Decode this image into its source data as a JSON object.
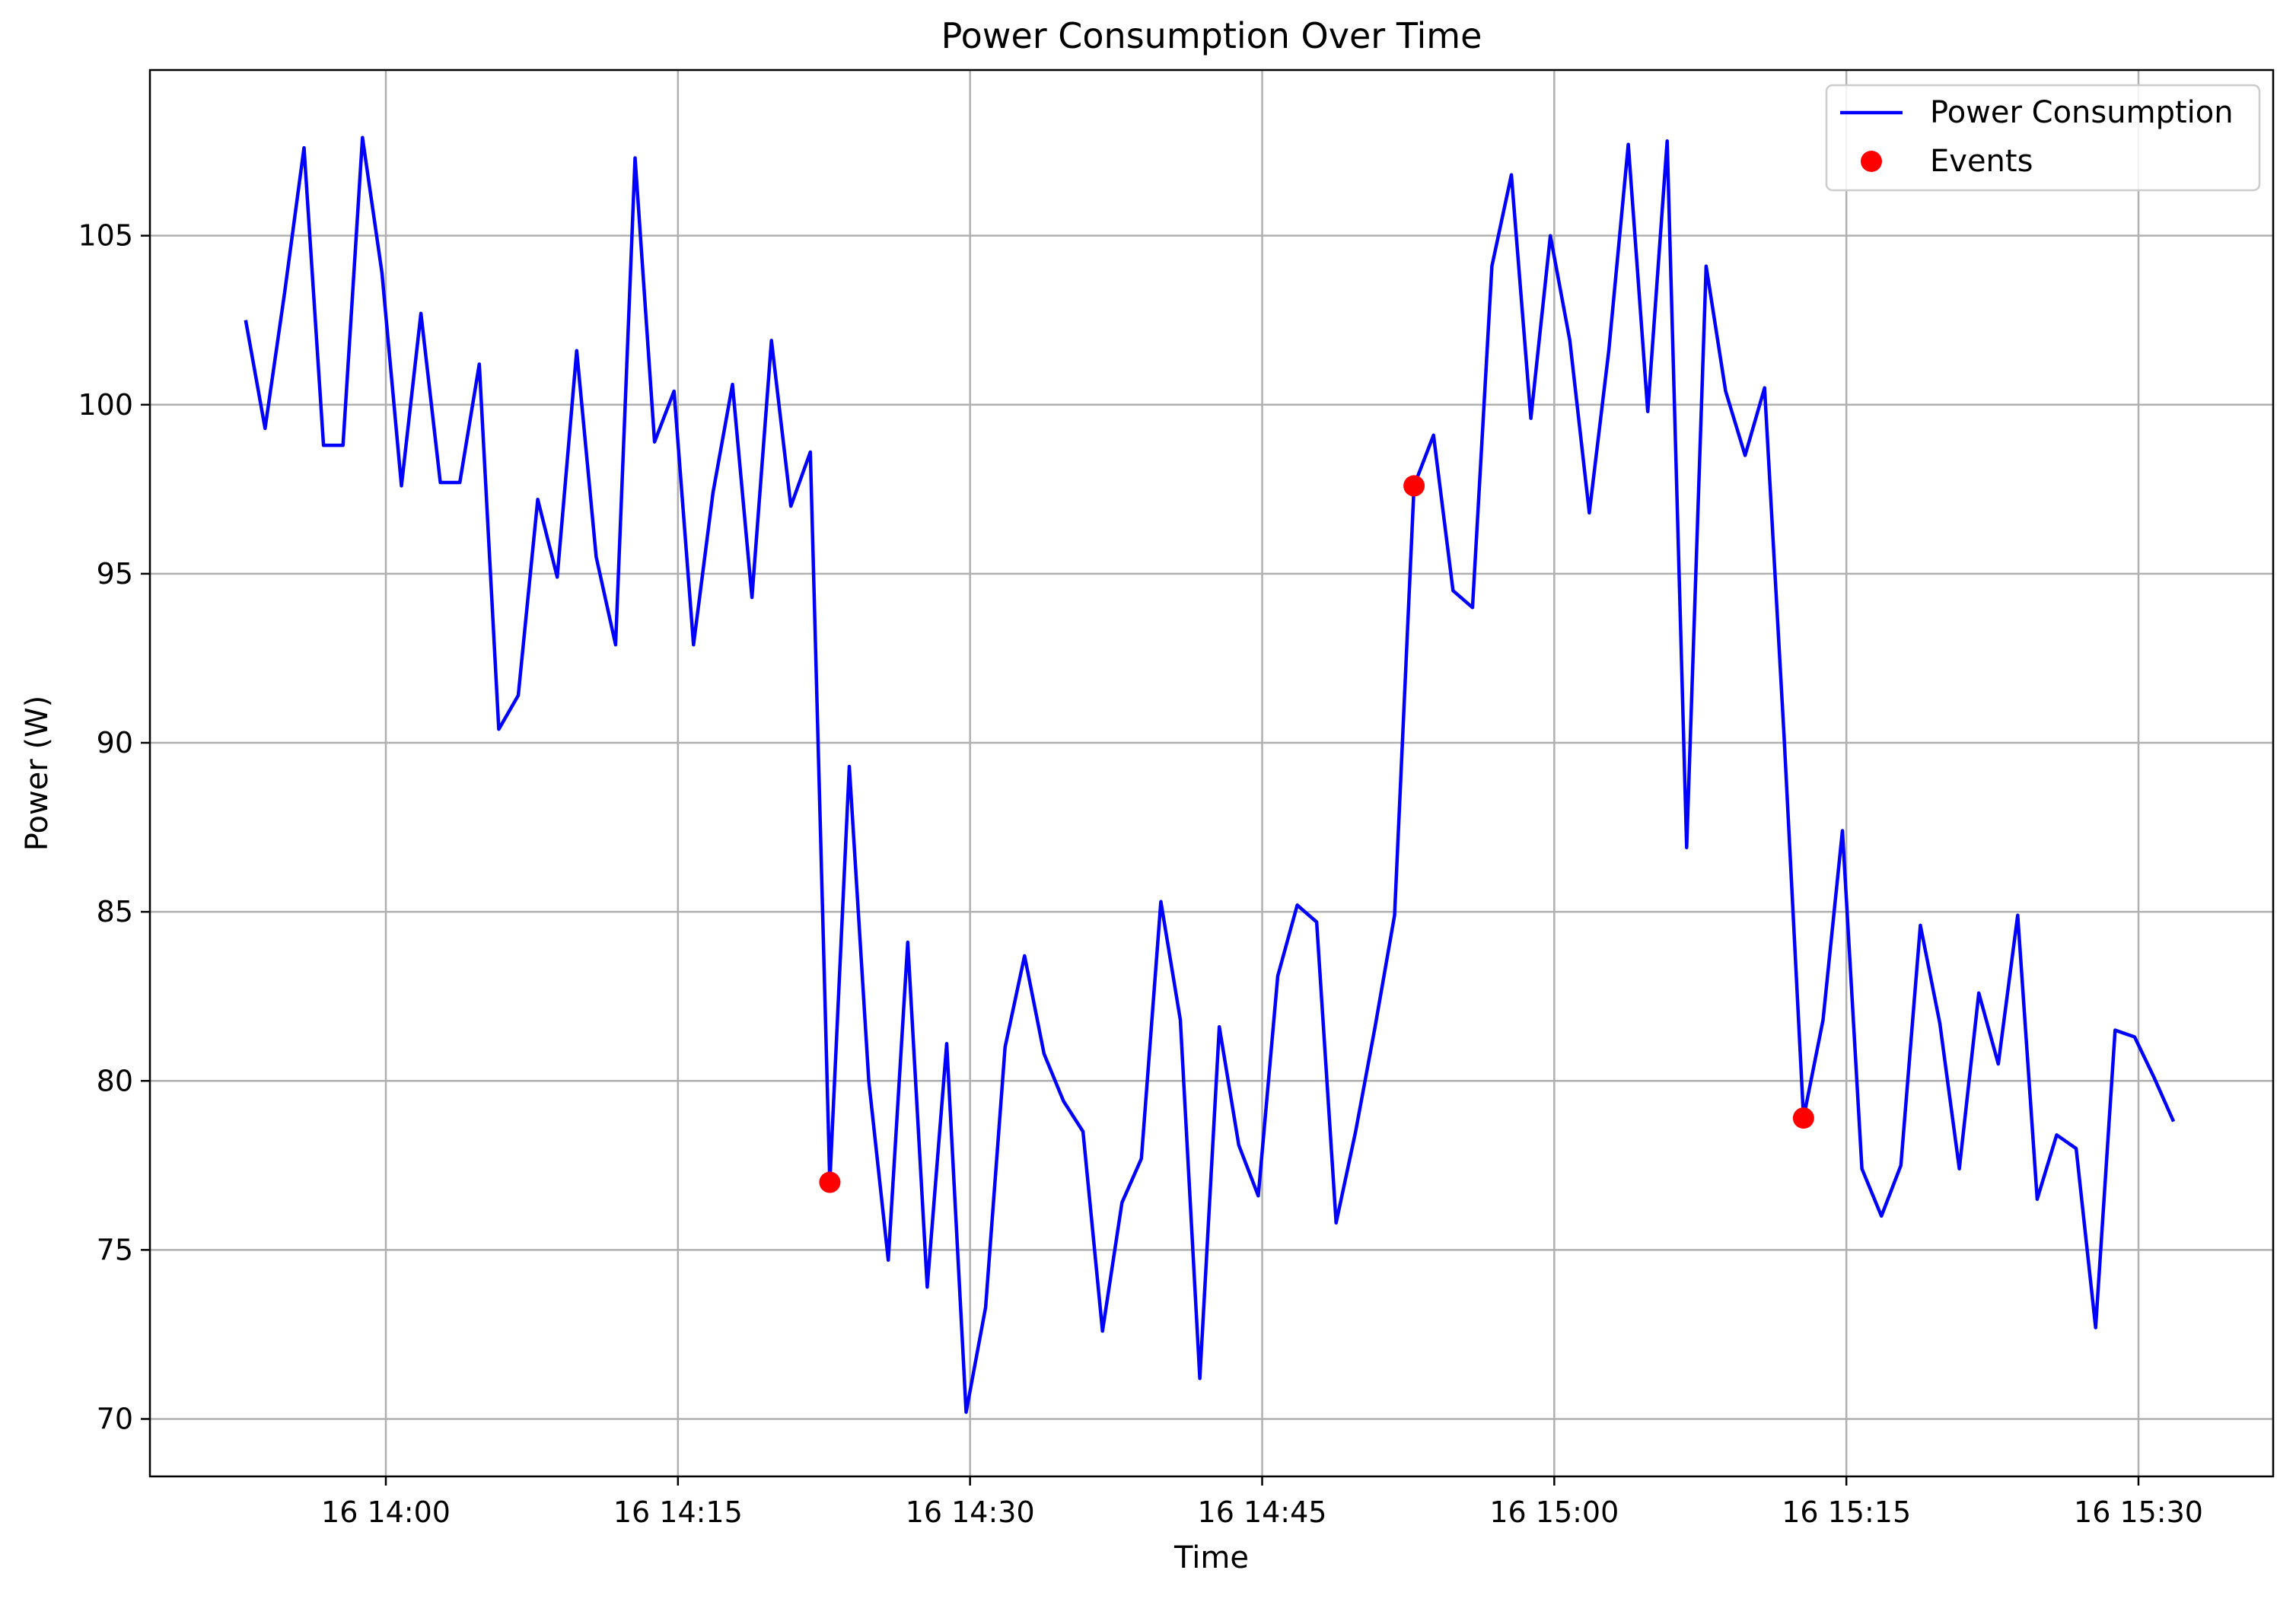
{
  "chart_data": {
    "type": "line",
    "title": "Power Consumption Over Time",
    "xlabel": "Time",
    "ylabel": "Power (W)",
    "x_tick_labels": [
      "16 14:00",
      "16 14:15",
      "16 14:30",
      "16 14:45",
      "16 15:00",
      "16 15:15",
      "16 15:30"
    ],
    "x_tick_minutes": [
      0,
      15,
      30,
      45,
      60,
      75,
      90
    ],
    "y_ticks": [
      70,
      75,
      80,
      85,
      90,
      95,
      100,
      105
    ],
    "ylim": [
      68.3,
      109.9
    ],
    "grid": true,
    "legend_position": "top-right",
    "series": [
      {
        "name": "Power Consumption",
        "color": "#0000ff",
        "x_minutes": [
          -7.2,
          -6.2,
          -5.2,
          -4.2,
          -3.2,
          -2.2,
          -1.2,
          -0.2,
          0.8,
          1.8,
          2.8,
          3.8,
          4.8,
          5.8,
          6.8,
          7.8,
          8.8,
          9.8,
          10.8,
          11.8,
          12.8,
          13.8,
          14.8,
          15.8,
          16.8,
          17.8,
          18.8,
          19.8,
          20.8,
          21.8,
          22.8,
          23.8,
          24.8,
          25.8,
          26.8,
          27.8,
          28.8,
          29.8,
          30.8,
          31.8,
          32.8,
          33.8,
          34.8,
          35.8,
          36.8,
          37.8,
          38.8,
          39.8,
          40.8,
          41.8,
          42.8,
          43.8,
          44.8,
          45.8,
          46.8,
          47.8,
          48.8,
          49.8,
          50.8,
          51.8,
          52.8,
          53.8,
          54.8,
          55.8,
          56.8,
          57.8,
          58.8,
          59.8,
          60.8,
          61.8,
          62.8,
          63.8,
          64.8,
          65.8,
          66.8,
          67.8,
          68.8,
          69.8,
          70.8,
          71.8,
          72.8,
          73.8,
          74.8,
          75.8,
          76.8,
          77.8,
          78.8,
          79.8,
          80.8,
          81.8,
          82.8,
          83.8,
          84.8,
          85.8,
          86.8,
          87.8,
          88.8,
          89.8,
          90.8,
          91.8
        ],
        "values": [
          102.5,
          99.3,
          103.3,
          107.6,
          98.8,
          98.8,
          107.9,
          103.9,
          97.6,
          102.7,
          97.7,
          97.7,
          101.2,
          90.4,
          91.4,
          97.2,
          94.9,
          101.6,
          95.5,
          92.9,
          107.3,
          98.9,
          100.4,
          92.9,
          97.4,
          100.6,
          94.3,
          101.9,
          97.0,
          98.6,
          77.0,
          89.3,
          80.0,
          74.7,
          84.1,
          73.9,
          81.1,
          70.2,
          73.3,
          81.0,
          83.7,
          80.8,
          79.4,
          78.5,
          72.6,
          76.4,
          77.7,
          85.3,
          81.8,
          71.2,
          81.6,
          78.1,
          76.6,
          83.1,
          85.2,
          84.7,
          75.8,
          78.5,
          81.6,
          84.9,
          97.6,
          99.1,
          94.5,
          94.0,
          104.1,
          106.8,
          99.6,
          105.0,
          101.9,
          96.8,
          101.6,
          107.7,
          99.8,
          107.8,
          86.9,
          104.1,
          100.4,
          98.5,
          100.5,
          90.2,
          78.9,
          81.8,
          87.4,
          77.4,
          76.0,
          77.5,
          84.6,
          81.7,
          77.4,
          82.6,
          80.5,
          84.9,
          76.5,
          78.4,
          78.0,
          72.7,
          81.5,
          81.3,
          80.1,
          78.8
        ]
      },
      {
        "name": "Events",
        "type": "scatter",
        "color": "#ff0000",
        "x_minutes": [
          22.8,
          52.8,
          72.8
        ],
        "values": [
          77.0,
          97.6,
          78.9
        ]
      }
    ]
  }
}
